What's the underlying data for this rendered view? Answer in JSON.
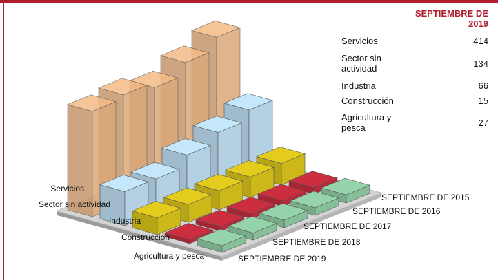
{
  "chart_data": {
    "type": "bar3d",
    "header": "SEPTIEMBRE DE 2019",
    "sectors": [
      "Servicios",
      "Sector sin actividad",
      "Industria",
      "Construcción",
      "Agricultura y pesca"
    ],
    "legend_labels": [
      "Servicios",
      "Sector sin actividad",
      "Industria",
      "Construcción",
      "Agricultura y pesca"
    ],
    "periods": [
      "SEPTIEMBRE DE 2015",
      "SEPTIEMBRE DE 2016",
      "SEPTIEMBRE DE 2017",
      "SEPTIEMBRE DE 2018",
      "SEPTIEMBRE DE 2019"
    ],
    "colors": [
      "#e8b27f",
      "#bcdcef",
      "#d8c21a",
      "#c22b3c",
      "#8ec9a2"
    ],
    "values": [
      [
        510,
        460,
        410,
        430,
        414
      ],
      [
        260,
        220,
        180,
        135,
        134
      ],
      [
        85,
        80,
        75,
        70,
        66
      ],
      [
        25,
        22,
        20,
        18,
        15
      ],
      [
        32,
        30,
        30,
        28,
        27
      ]
    ]
  }
}
